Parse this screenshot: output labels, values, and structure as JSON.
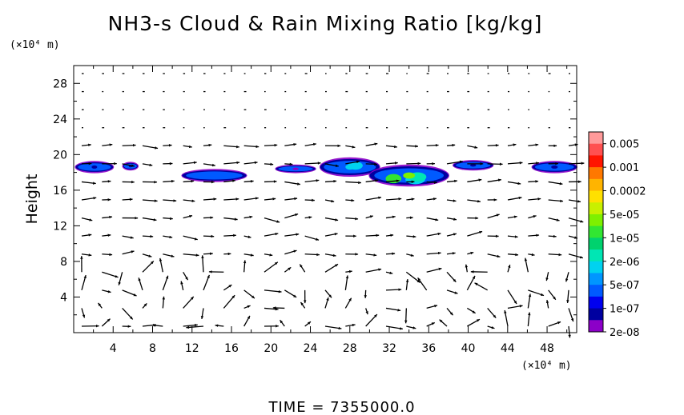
{
  "chart_data": {
    "type": "heatmap",
    "title": "NH3-s Cloud & Rain Mixing Ratio [kg/kg]",
    "ylabel": "Height",
    "y_unit": "(×10⁴ m)",
    "x_unit": "(×10⁴ m)",
    "xlim": [
      0,
      51
    ],
    "ylim": [
      0,
      30
    ],
    "x_ticks": [
      "4",
      "8",
      "12",
      "16",
      "20",
      "24",
      "28",
      "32",
      "36",
      "40",
      "44",
      "48"
    ],
    "x_tick_values": [
      4,
      8,
      12,
      16,
      20,
      24,
      28,
      32,
      36,
      40,
      44,
      48
    ],
    "y_ticks": [
      "4",
      "8",
      "12",
      "16",
      "20",
      "24",
      "28"
    ],
    "y_tick_values": [
      4,
      8,
      12,
      16,
      20,
      24,
      28
    ],
    "footer": "TIME  =  7355000.0",
    "colorbar": {
      "labels": [
        "0.005",
        "0.001",
        "0.0002",
        "5e-05",
        "1e-05",
        "2e-06",
        "5e-07",
        "1e-07",
        "2e-08"
      ],
      "colors": [
        "#ff9a9a",
        "#ff5050",
        "#ff1400",
        "#ff7800",
        "#ffb400",
        "#ffe000",
        "#c8f000",
        "#7ef000",
        "#32e632",
        "#00d26e",
        "#00e6b4",
        "#00d2f0",
        "#0096ff",
        "#005aff",
        "#0000f0",
        "#0000a0",
        "#8c00c8"
      ]
    },
    "cloud_regions": [
      {
        "x": [
          0.2,
          4.0
        ],
        "y": [
          18.0,
          19.2
        ],
        "level": "1e-07"
      },
      {
        "x": [
          5.0,
          6.5
        ],
        "y": [
          18.3,
          19.1
        ],
        "level": "1e-07"
      },
      {
        "x": [
          11.0,
          17.5
        ],
        "y": [
          17.0,
          18.3
        ],
        "level": "5e-07"
      },
      {
        "x": [
          20.5,
          24.5
        ],
        "y": [
          18.0,
          18.8
        ],
        "level": "2e-08"
      },
      {
        "x": [
          25.0,
          31.0
        ],
        "y": [
          17.6,
          19.6
        ],
        "level": "2e-06"
      },
      {
        "x": [
          30.0,
          38.0
        ],
        "y": [
          16.5,
          18.8
        ],
        "level": "5e-05"
      },
      {
        "x": [
          38.5,
          42.5
        ],
        "y": [
          18.3,
          19.3
        ],
        "level": "1e-07"
      },
      {
        "x": [
          46.5,
          51.0
        ],
        "y": [
          18.0,
          19.2
        ],
        "level": "1e-07"
      }
    ]
  }
}
